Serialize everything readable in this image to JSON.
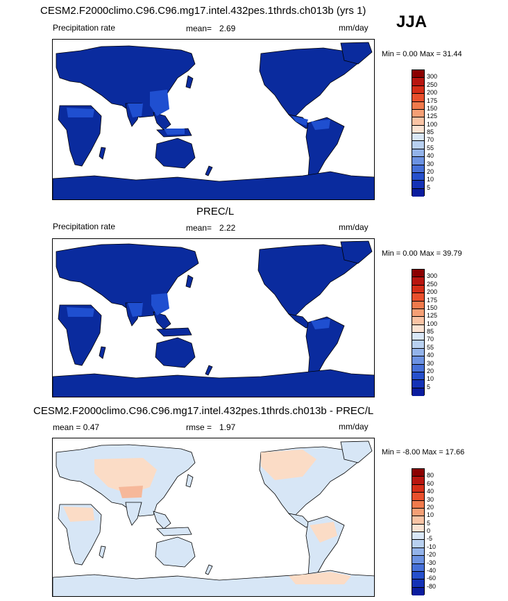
{
  "season": "JJA",
  "panels": [
    {
      "id": "model",
      "title": "CESM2.F2000climo.C96.C96.mg17.intel.432pes.1thrds.ch013b (yrs 1)",
      "left_label": "Precipitation rate",
      "stat_label": "mean=",
      "stat_value": "2.69",
      "units": "mm/day",
      "min_max": "Min =  0.00 Max = 31.44",
      "colorbar_ticks": [
        "300",
        "250",
        "200",
        "175",
        "150",
        "125",
        "100",
        "85",
        "70",
        "55",
        "40",
        "30",
        "20",
        "10",
        "5"
      ],
      "colorbar_colors": [
        "#8b0000",
        "#b8150f",
        "#d52d17",
        "#e9502c",
        "#f07a4c",
        "#f59f75",
        "#f9c3a4",
        "#fbe3d3",
        "#d9e7f7",
        "#b8d0f0",
        "#93b3ea",
        "#6c92e2",
        "#4670d8",
        "#2650cc",
        "#1432b6",
        "#0a1c9e"
      ]
    },
    {
      "id": "obs",
      "title": "PREC/L",
      "left_label": "Precipitation rate",
      "stat_label": "mean=",
      "stat_value": "2.22",
      "units": "mm/day",
      "min_max": "Min =  0.00 Max = 39.79",
      "colorbar_ticks": [
        "300",
        "250",
        "200",
        "175",
        "150",
        "125",
        "100",
        "85",
        "70",
        "55",
        "40",
        "30",
        "20",
        "10",
        "5"
      ],
      "colorbar_colors": [
        "#8b0000",
        "#b8150f",
        "#d52d17",
        "#e9502c",
        "#f07a4c",
        "#f59f75",
        "#f9c3a4",
        "#fbe3d3",
        "#d9e7f7",
        "#b8d0f0",
        "#93b3ea",
        "#6c92e2",
        "#4670d8",
        "#2650cc",
        "#1432b6",
        "#0a1c9e"
      ]
    },
    {
      "id": "diff",
      "title": "CESM2.F2000climo.C96.C96.mg17.intel.432pes.1thrds.ch013b - PREC/L",
      "left_label": "mean =  0.47",
      "stat_label": "rmse =",
      "stat_value": "1.97",
      "units": "mm/day",
      "min_max": "Min = -8.00 Max = 17.66",
      "colorbar_ticks": [
        "80",
        "60",
        "40",
        "30",
        "20",
        "10",
        "5",
        "0",
        "-5",
        "-10",
        "-20",
        "-30",
        "-40",
        "-60",
        "-80"
      ],
      "colorbar_colors": [
        "#8b0000",
        "#b8150f",
        "#d52d17",
        "#e9502c",
        "#f07a4c",
        "#f59f75",
        "#f9c3a4",
        "#fbe3d3",
        "#d9e7f7",
        "#b8d0f0",
        "#93b3ea",
        "#6c92e2",
        "#4670d8",
        "#2650cc",
        "#1432b6",
        "#0a1c9e"
      ]
    }
  ],
  "style": {
    "land_model": "#0a2b9e",
    "land_obs": "#0a2b9e",
    "wet_model": "#1f4fd0",
    "wet_model_2": "#3a6fe0",
    "land_diff": "#d7e6f6",
    "diff_pos": "#fbdcc6",
    "diff_pos_2": "#f6b89a",
    "coast": "#000000"
  }
}
